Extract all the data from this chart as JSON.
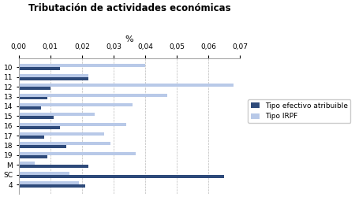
{
  "title": "Tributación de actividades económicas",
  "xlabel": "%",
  "categories": [
    "10",
    "11",
    "12",
    "13",
    "14",
    "15",
    "16",
    "17",
    "18",
    "19",
    "M",
    "SC",
    "4"
  ],
  "tipo_efectivo": [
    0.013,
    0.022,
    0.01,
    0.009,
    0.007,
    0.011,
    0.013,
    0.008,
    0.015,
    0.009,
    0.022,
    0.065,
    0.021
  ],
  "tipo_irpf": [
    0.04,
    0.022,
    0.068,
    0.047,
    0.036,
    0.024,
    0.034,
    0.027,
    0.029,
    0.037,
    0.005,
    0.016,
    0.019
  ],
  "xlim": [
    0,
    0.07
  ],
  "xticks": [
    0.0,
    0.01,
    0.02,
    0.03,
    0.04,
    0.05,
    0.06,
    0.07
  ],
  "color_efectivo": "#2E4A7A",
  "color_irpf": "#B8C9E8",
  "legend_labels": [
    "Tipo efectivo atribuible",
    "Tipo IRPF"
  ],
  "bar_height": 0.32,
  "background_color": "#FFFFFF",
  "grid_color": "#BBBBBB"
}
